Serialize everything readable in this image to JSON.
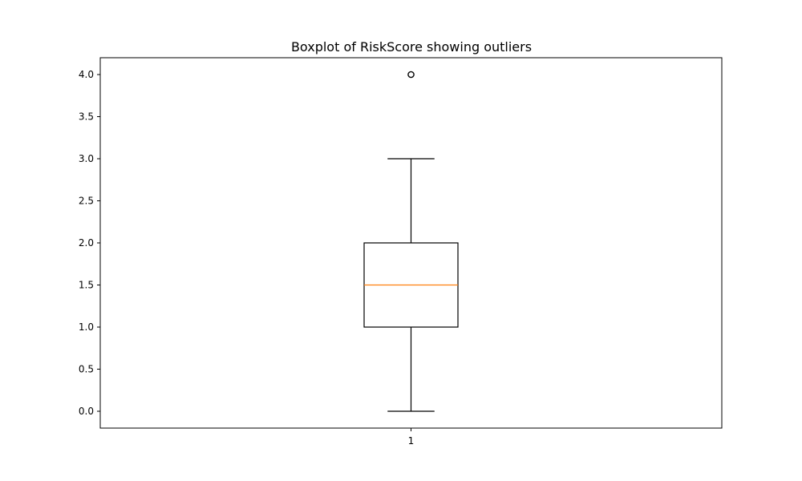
{
  "chart_data": {
    "type": "boxplot",
    "title": "Boxplot of RiskScore showing outliers",
    "xlabel": "",
    "ylabel": "",
    "categories": [
      "1"
    ],
    "boxes": [
      {
        "category": "1",
        "whisker_low": 0.0,
        "q1": 1.0,
        "median": 1.5,
        "q3": 2.0,
        "whisker_high": 3.0,
        "outliers": [
          4.0
        ]
      }
    ],
    "ylim": [
      -0.2,
      4.2
    ],
    "yticks": [
      0.0,
      0.5,
      1.0,
      1.5,
      2.0,
      2.5,
      3.0,
      3.5,
      4.0
    ],
    "ytick_labels": [
      "0.0",
      "0.5",
      "1.0",
      "1.5",
      "2.0",
      "2.5",
      "3.0",
      "3.5",
      "4.0"
    ],
    "grid": false,
    "colors": {
      "box": "#000000",
      "median": "#ff7f0e",
      "outlier": "#000000"
    }
  }
}
